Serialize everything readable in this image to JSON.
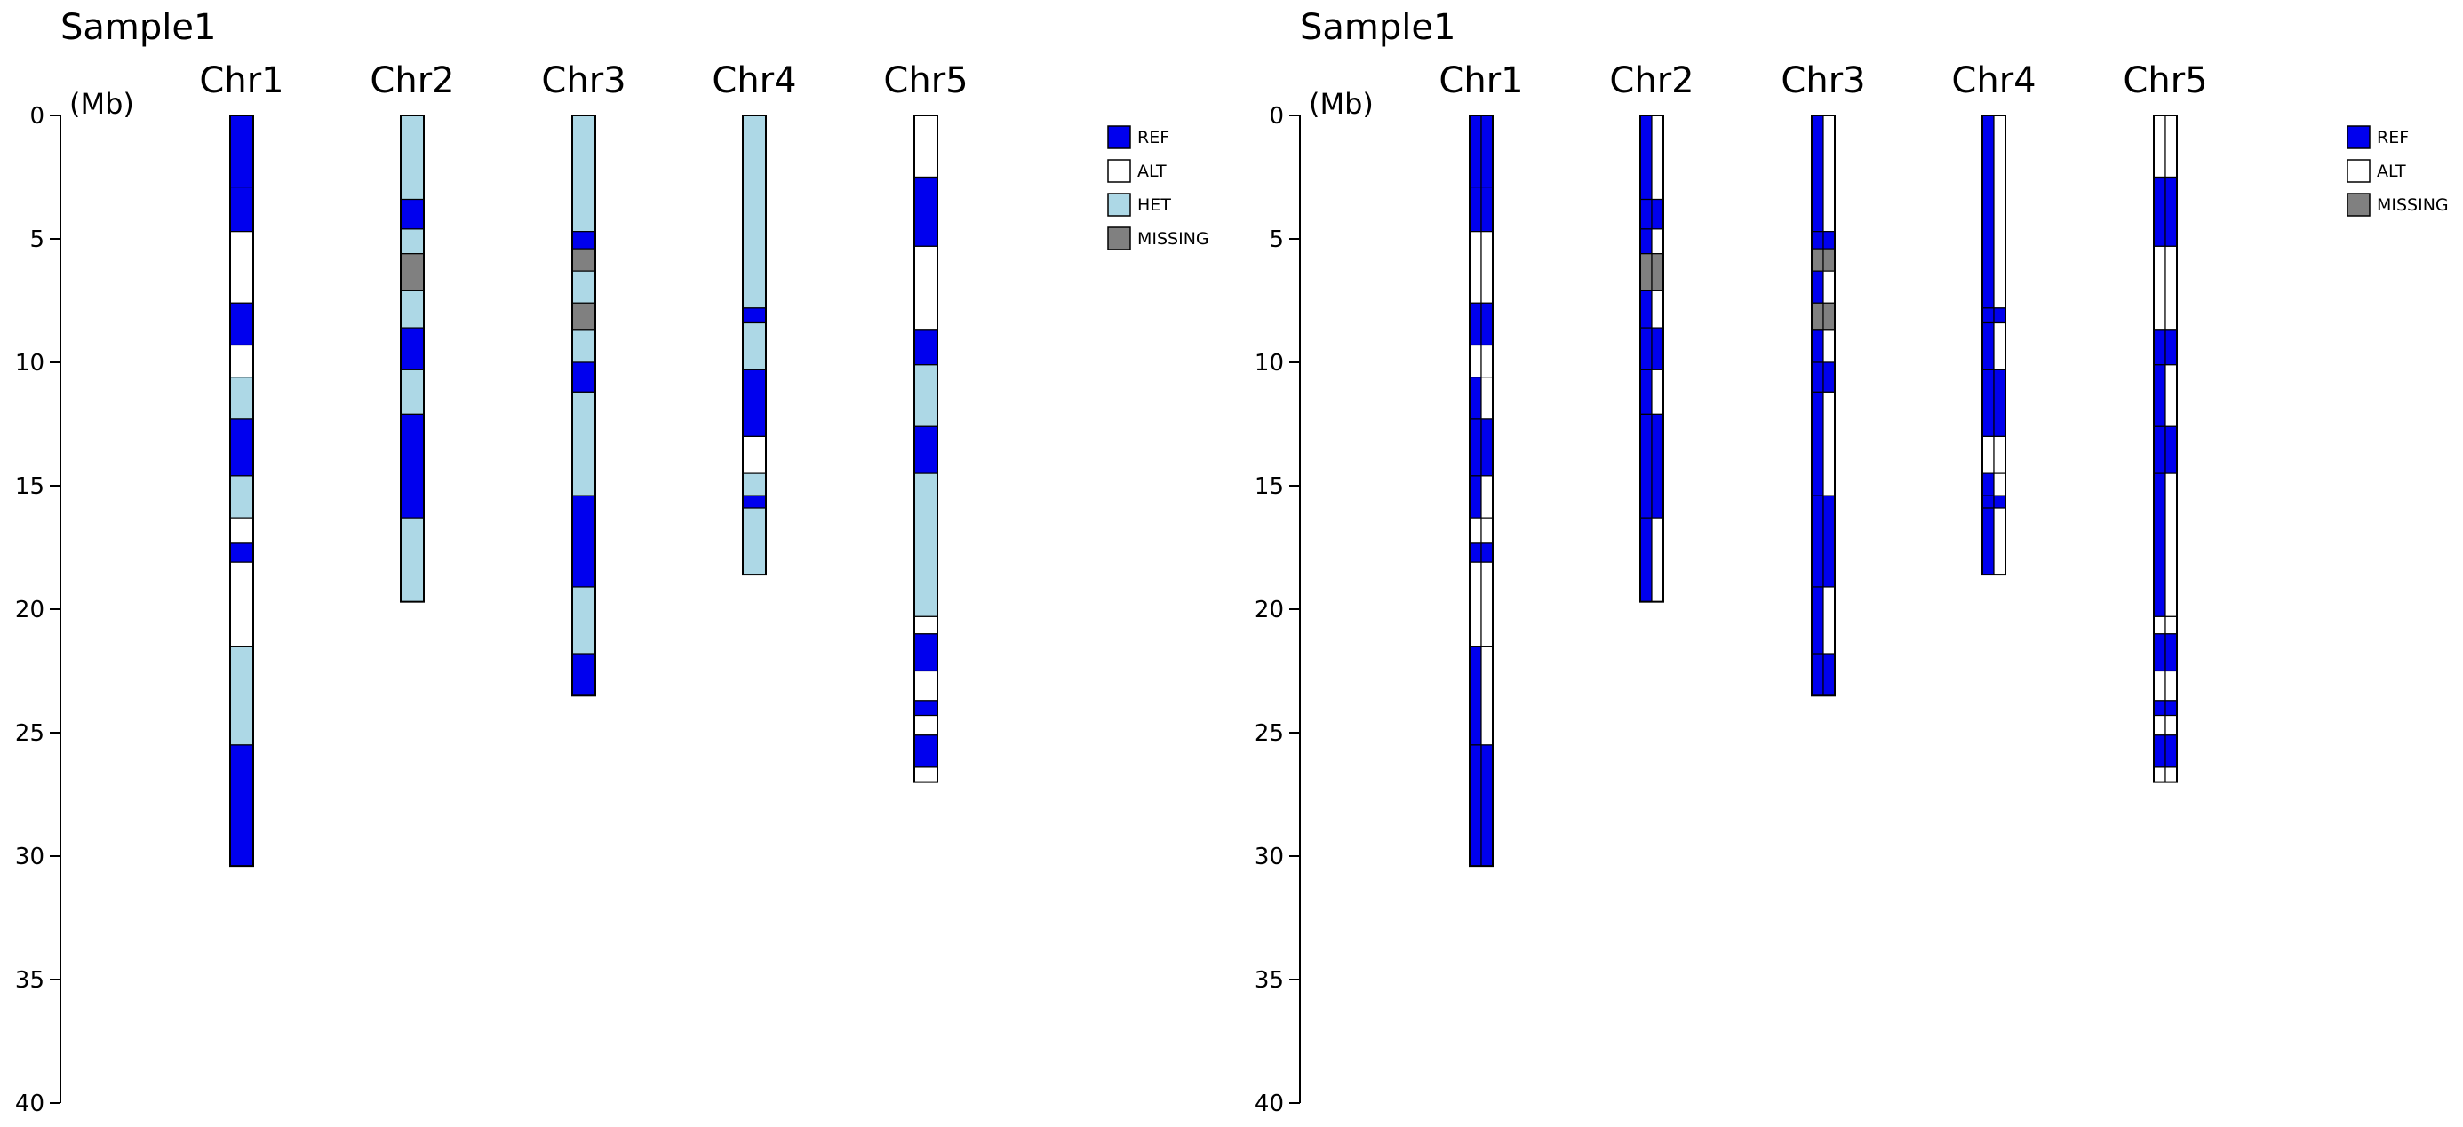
{
  "chart_data": [
    {
      "type": "ideogram",
      "title": "Sample1",
      "ylabel": "(Mb)",
      "ylim": [
        0,
        40
      ],
      "yticks": [
        "0",
        "5",
        "10",
        "15",
        "20",
        "25",
        "30",
        "35",
        "40"
      ],
      "chromosomes": [
        "Chr1",
        "Chr2",
        "Chr3",
        "Chr4",
        "Chr5"
      ],
      "chromosome_lengths_mb": [
        30.4,
        19.7,
        23.5,
        18.6,
        27.0
      ],
      "legend": [
        {
          "label": "REF",
          "color": "#0000ee"
        },
        {
          "label": "ALT",
          "color": "#ffffff"
        },
        {
          "label": "HET",
          "color": "#add8e6"
        },
        {
          "label": "MISSING",
          "color": "#808080"
        }
      ],
      "segments": {
        "Chr1": [
          {
            "start": 0,
            "end": 2.9,
            "g": "REF"
          },
          {
            "start": 2.9,
            "end": 4.7,
            "g": "REF"
          },
          {
            "start": 4.7,
            "end": 7.6,
            "g": "ALT"
          },
          {
            "start": 7.6,
            "end": 9.3,
            "g": "REF"
          },
          {
            "start": 9.3,
            "end": 10.6,
            "g": "ALT"
          },
          {
            "start": 10.6,
            "end": 12.3,
            "g": "HET"
          },
          {
            "start": 12.3,
            "end": 14.6,
            "g": "REF"
          },
          {
            "start": 14.6,
            "end": 16.3,
            "g": "HET"
          },
          {
            "start": 16.3,
            "end": 17.3,
            "g": "ALT"
          },
          {
            "start": 17.3,
            "end": 18.1,
            "g": "REF"
          },
          {
            "start": 18.1,
            "end": 21.5,
            "g": "ALT"
          },
          {
            "start": 21.5,
            "end": 25.5,
            "g": "HET"
          },
          {
            "start": 25.5,
            "end": 30.4,
            "g": "REF"
          }
        ],
        "Chr2": [
          {
            "start": 0,
            "end": 3.4,
            "g": "HET"
          },
          {
            "start": 3.4,
            "end": 4.6,
            "g": "REF"
          },
          {
            "start": 4.6,
            "end": 5.6,
            "g": "HET"
          },
          {
            "start": 5.6,
            "end": 7.1,
            "g": "MISSING"
          },
          {
            "start": 7.1,
            "end": 8.6,
            "g": "HET"
          },
          {
            "start": 8.6,
            "end": 10.3,
            "g": "REF"
          },
          {
            "start": 10.3,
            "end": 12.1,
            "g": "HET"
          },
          {
            "start": 12.1,
            "end": 16.3,
            "g": "REF"
          },
          {
            "start": 16.3,
            "end": 19.7,
            "g": "HET"
          }
        ],
        "Chr3": [
          {
            "start": 0,
            "end": 4.7,
            "g": "HET"
          },
          {
            "start": 4.7,
            "end": 5.4,
            "g": "REF"
          },
          {
            "start": 5.4,
            "end": 6.3,
            "g": "MISSING"
          },
          {
            "start": 6.3,
            "end": 7.6,
            "g": "HET"
          },
          {
            "start": 7.6,
            "end": 8.7,
            "g": "MISSING"
          },
          {
            "start": 8.7,
            "end": 10.0,
            "g": "HET"
          },
          {
            "start": 10.0,
            "end": 11.2,
            "g": "REF"
          },
          {
            "start": 11.2,
            "end": 15.4,
            "g": "HET"
          },
          {
            "start": 15.4,
            "end": 19.1,
            "g": "REF"
          },
          {
            "start": 19.1,
            "end": 21.8,
            "g": "HET"
          },
          {
            "start": 21.8,
            "end": 23.5,
            "g": "REF"
          }
        ],
        "Chr4": [
          {
            "start": 0,
            "end": 7.8,
            "g": "HET"
          },
          {
            "start": 7.8,
            "end": 8.4,
            "g": "REF"
          },
          {
            "start": 8.4,
            "end": 10.3,
            "g": "HET"
          },
          {
            "start": 10.3,
            "end": 13.0,
            "g": "REF"
          },
          {
            "start": 13.0,
            "end": 14.5,
            "g": "ALT"
          },
          {
            "start": 14.5,
            "end": 15.4,
            "g": "HET"
          },
          {
            "start": 15.4,
            "end": 15.9,
            "g": "REF"
          },
          {
            "start": 15.9,
            "end": 18.6,
            "g": "HET"
          }
        ],
        "Chr5": [
          {
            "start": 0,
            "end": 2.5,
            "g": "ALT"
          },
          {
            "start": 2.5,
            "end": 5.3,
            "g": "REF"
          },
          {
            "start": 5.3,
            "end": 8.7,
            "g": "ALT"
          },
          {
            "start": 8.7,
            "end": 10.1,
            "g": "REF"
          },
          {
            "start": 10.1,
            "end": 12.6,
            "g": "HET"
          },
          {
            "start": 12.6,
            "end": 14.5,
            "g": "REF"
          },
          {
            "start": 14.5,
            "end": 20.3,
            "g": "HET"
          },
          {
            "start": 20.3,
            "end": 21.0,
            "g": "ALT"
          },
          {
            "start": 21.0,
            "end": 22.5,
            "g": "REF"
          },
          {
            "start": 22.5,
            "end": 23.7,
            "g": "ALT"
          },
          {
            "start": 23.7,
            "end": 24.3,
            "g": "REF"
          },
          {
            "start": 24.3,
            "end": 25.1,
            "g": "ALT"
          },
          {
            "start": 25.1,
            "end": 26.4,
            "g": "REF"
          },
          {
            "start": 26.4,
            "end": 27.0,
            "g": "ALT"
          }
        ]
      }
    },
    {
      "type": "ideogram",
      "title": "Sample1",
      "ylabel": "(Mb)",
      "ylim": [
        0,
        40
      ],
      "yticks": [
        "0",
        "5",
        "10",
        "15",
        "20",
        "25",
        "30",
        "35",
        "40"
      ],
      "chromosomes": [
        "Chr1",
        "Chr2",
        "Chr3",
        "Chr4",
        "Chr5"
      ],
      "chromosome_lengths_mb": [
        30.4,
        19.7,
        23.5,
        18.6,
        27.0
      ],
      "legend": [
        {
          "label": "REF",
          "color": "#0000ee"
        },
        {
          "label": "ALT",
          "color": "#ffffff"
        },
        {
          "label": "MISSING",
          "color": "#808080"
        }
      ],
      "segments": {
        "Chr1": [
          {
            "start": 0,
            "end": 2.9,
            "a": "REF",
            "b": "REF"
          },
          {
            "start": 2.9,
            "end": 4.7,
            "a": "REF",
            "b": "REF"
          },
          {
            "start": 4.7,
            "end": 7.6,
            "a": "ALT",
            "b": "ALT"
          },
          {
            "start": 7.6,
            "end": 9.3,
            "a": "REF",
            "b": "REF"
          },
          {
            "start": 9.3,
            "end": 10.6,
            "a": "ALT",
            "b": "ALT"
          },
          {
            "start": 10.6,
            "end": 12.3,
            "a": "REF",
            "b": "ALT"
          },
          {
            "start": 12.3,
            "end": 14.6,
            "a": "REF",
            "b": "REF"
          },
          {
            "start": 14.6,
            "end": 16.3,
            "a": "REF",
            "b": "ALT"
          },
          {
            "start": 16.3,
            "end": 17.3,
            "a": "ALT",
            "b": "ALT"
          },
          {
            "start": 17.3,
            "end": 18.1,
            "a": "REF",
            "b": "REF"
          },
          {
            "start": 18.1,
            "end": 21.5,
            "a": "ALT",
            "b": "ALT"
          },
          {
            "start": 21.5,
            "end": 25.5,
            "a": "REF",
            "b": "ALT"
          },
          {
            "start": 25.5,
            "end": 30.4,
            "a": "REF",
            "b": "REF"
          }
        ],
        "Chr2": [
          {
            "start": 0,
            "end": 3.4,
            "a": "REF",
            "b": "ALT"
          },
          {
            "start": 3.4,
            "end": 4.6,
            "a": "REF",
            "b": "REF"
          },
          {
            "start": 4.6,
            "end": 5.6,
            "a": "REF",
            "b": "ALT"
          },
          {
            "start": 5.6,
            "end": 7.1,
            "a": "MISSING",
            "b": "MISSING"
          },
          {
            "start": 7.1,
            "end": 8.6,
            "a": "REF",
            "b": "ALT"
          },
          {
            "start": 8.6,
            "end": 10.3,
            "a": "REF",
            "b": "REF"
          },
          {
            "start": 10.3,
            "end": 12.1,
            "a": "REF",
            "b": "ALT"
          },
          {
            "start": 12.1,
            "end": 16.3,
            "a": "REF",
            "b": "REF"
          },
          {
            "start": 16.3,
            "end": 19.7,
            "a": "REF",
            "b": "ALT"
          }
        ],
        "Chr3": [
          {
            "start": 0,
            "end": 4.7,
            "a": "REF",
            "b": "ALT"
          },
          {
            "start": 4.7,
            "end": 5.4,
            "a": "REF",
            "b": "REF"
          },
          {
            "start": 5.4,
            "end": 6.3,
            "a": "MISSING",
            "b": "MISSING"
          },
          {
            "start": 6.3,
            "end": 7.6,
            "a": "REF",
            "b": "ALT"
          },
          {
            "start": 7.6,
            "end": 8.7,
            "a": "MISSING",
            "b": "MISSING"
          },
          {
            "start": 8.7,
            "end": 10.0,
            "a": "REF",
            "b": "ALT"
          },
          {
            "start": 10.0,
            "end": 11.2,
            "a": "REF",
            "b": "REF"
          },
          {
            "start": 11.2,
            "end": 15.4,
            "a": "REF",
            "b": "ALT"
          },
          {
            "start": 15.4,
            "end": 19.1,
            "a": "REF",
            "b": "REF"
          },
          {
            "start": 19.1,
            "end": 21.8,
            "a": "REF",
            "b": "ALT"
          },
          {
            "start": 21.8,
            "end": 23.5,
            "a": "REF",
            "b": "REF"
          }
        ],
        "Chr4": [
          {
            "start": 0,
            "end": 7.8,
            "a": "REF",
            "b": "ALT"
          },
          {
            "start": 7.8,
            "end": 8.4,
            "a": "REF",
            "b": "REF"
          },
          {
            "start": 8.4,
            "end": 10.3,
            "a": "REF",
            "b": "ALT"
          },
          {
            "start": 10.3,
            "end": 13.0,
            "a": "REF",
            "b": "REF"
          },
          {
            "start": 13.0,
            "end": 14.5,
            "a": "ALT",
            "b": "ALT"
          },
          {
            "start": 14.5,
            "end": 15.4,
            "a": "REF",
            "b": "ALT"
          },
          {
            "start": 15.4,
            "end": 15.9,
            "a": "REF",
            "b": "REF"
          },
          {
            "start": 15.9,
            "end": 18.6,
            "a": "REF",
            "b": "ALT"
          }
        ],
        "Chr5": [
          {
            "start": 0,
            "end": 2.5,
            "a": "ALT",
            "b": "ALT"
          },
          {
            "start": 2.5,
            "end": 5.3,
            "a": "REF",
            "b": "REF"
          },
          {
            "start": 5.3,
            "end": 8.7,
            "a": "ALT",
            "b": "ALT"
          },
          {
            "start": 8.7,
            "end": 10.1,
            "a": "REF",
            "b": "REF"
          },
          {
            "start": 10.1,
            "end": 12.6,
            "a": "REF",
            "b": "ALT"
          },
          {
            "start": 12.6,
            "end": 14.5,
            "a": "REF",
            "b": "REF"
          },
          {
            "start": 14.5,
            "end": 20.3,
            "a": "REF",
            "b": "ALT"
          },
          {
            "start": 20.3,
            "end": 21.0,
            "a": "ALT",
            "b": "ALT"
          },
          {
            "start": 21.0,
            "end": 22.5,
            "a": "REF",
            "b": "REF"
          },
          {
            "start": 22.5,
            "end": 23.7,
            "a": "ALT",
            "b": "ALT"
          },
          {
            "start": 23.7,
            "end": 24.3,
            "a": "REF",
            "b": "REF"
          },
          {
            "start": 24.3,
            "end": 25.1,
            "a": "ALT",
            "b": "ALT"
          },
          {
            "start": 25.1,
            "end": 26.4,
            "a": "REF",
            "b": "REF"
          },
          {
            "start": 26.4,
            "end": 27.0,
            "a": "ALT",
            "b": "ALT"
          }
        ]
      }
    }
  ]
}
